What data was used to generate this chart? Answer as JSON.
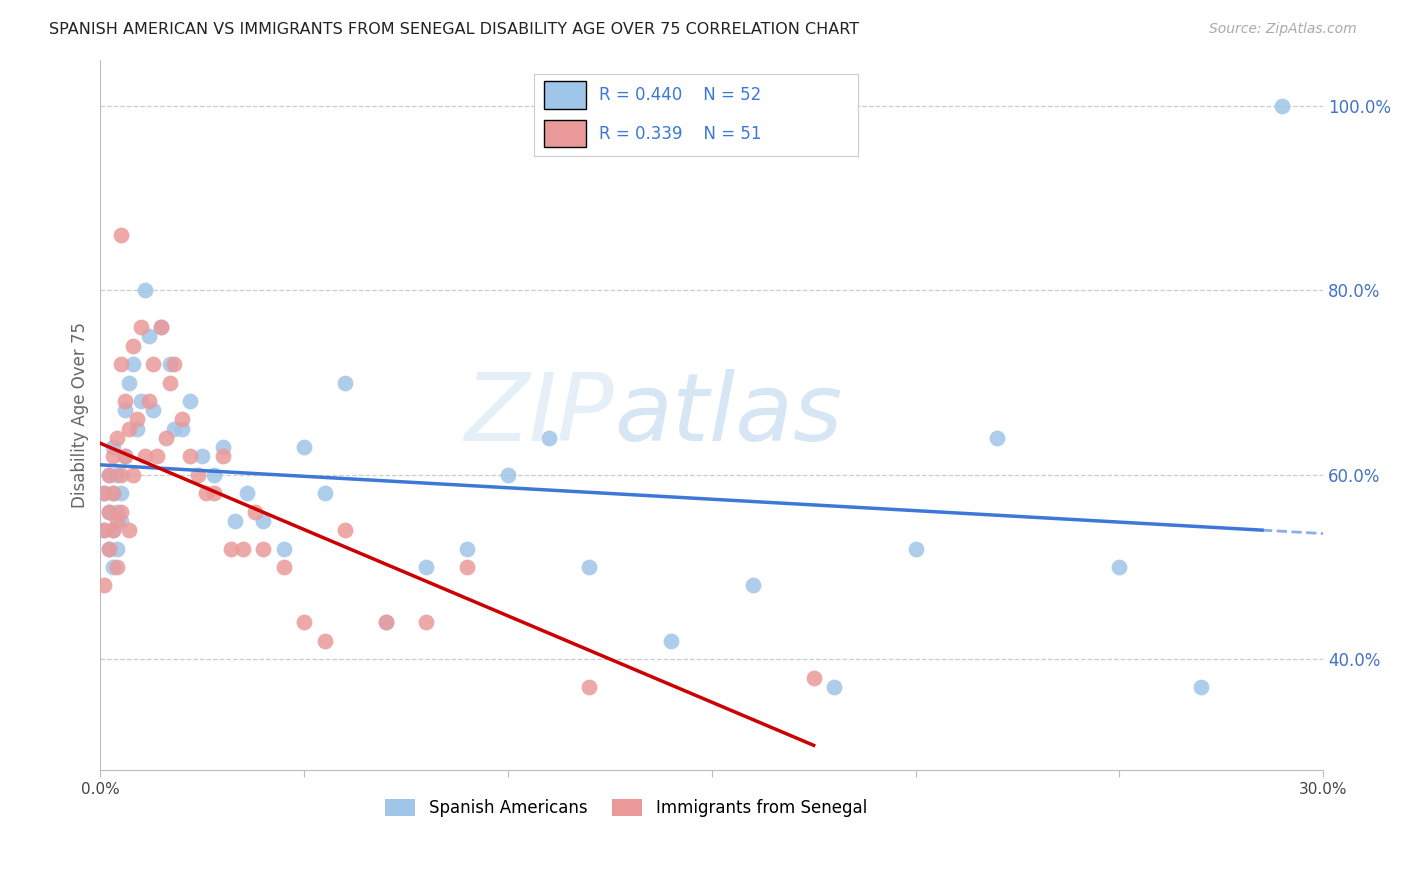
{
  "title": "SPANISH AMERICAN VS IMMIGRANTS FROM SENEGAL DISABILITY AGE OVER 75 CORRELATION CHART",
  "source": "Source: ZipAtlas.com",
  "ylabel": "Disability Age Over 75",
  "xlim": [
    0.0,
    0.3
  ],
  "ylim": [
    0.28,
    1.05
  ],
  "x_ticks": [
    0.0,
    0.05,
    0.1,
    0.15,
    0.2,
    0.25,
    0.3
  ],
  "x_tick_labels": [
    "0.0%",
    "",
    "",
    "",
    "",
    "",
    "30.0%"
  ],
  "y_ticks_right": [
    0.4,
    0.6,
    0.8,
    1.0
  ],
  "y_tick_labels_right": [
    "40.0%",
    "60.0%",
    "80.0%",
    "100.0%"
  ],
  "legend_blue_label": "Spanish Americans",
  "legend_pink_label": "Immigrants from Senegal",
  "R_blue": 0.44,
  "N_blue": 52,
  "R_pink": 0.339,
  "N_pink": 51,
  "blue_color": "#9fc5e8",
  "pink_color": "#ea9999",
  "line_blue": "#3c78d8",
  "line_pink": "#cc0000",
  "watermark_zip": "ZIP",
  "watermark_atlas": "atlas",
  "blue_scatter_x": [
    0.001,
    0.001,
    0.002,
    0.002,
    0.002,
    0.003,
    0.003,
    0.003,
    0.003,
    0.004,
    0.004,
    0.004,
    0.005,
    0.005,
    0.006,
    0.006,
    0.007,
    0.008,
    0.009,
    0.01,
    0.011,
    0.012,
    0.013,
    0.015,
    0.017,
    0.018,
    0.02,
    0.022,
    0.025,
    0.028,
    0.03,
    0.033,
    0.036,
    0.04,
    0.045,
    0.05,
    0.055,
    0.06,
    0.07,
    0.08,
    0.09,
    0.1,
    0.11,
    0.12,
    0.14,
    0.16,
    0.18,
    0.2,
    0.22,
    0.25,
    0.27,
    0.29
  ],
  "blue_scatter_y": [
    0.54,
    0.58,
    0.52,
    0.56,
    0.6,
    0.5,
    0.54,
    0.58,
    0.63,
    0.52,
    0.56,
    0.6,
    0.55,
    0.58,
    0.62,
    0.67,
    0.7,
    0.72,
    0.65,
    0.68,
    0.8,
    0.75,
    0.67,
    0.76,
    0.72,
    0.65,
    0.65,
    0.68,
    0.62,
    0.6,
    0.63,
    0.55,
    0.58,
    0.55,
    0.52,
    0.63,
    0.58,
    0.7,
    0.44,
    0.5,
    0.52,
    0.6,
    0.64,
    0.5,
    0.42,
    0.48,
    0.37,
    0.52,
    0.64,
    0.5,
    0.37,
    1.0
  ],
  "pink_scatter_x": [
    0.001,
    0.001,
    0.001,
    0.002,
    0.002,
    0.002,
    0.003,
    0.003,
    0.003,
    0.004,
    0.004,
    0.004,
    0.005,
    0.005,
    0.005,
    0.006,
    0.006,
    0.007,
    0.007,
    0.008,
    0.008,
    0.009,
    0.01,
    0.011,
    0.012,
    0.013,
    0.014,
    0.015,
    0.016,
    0.017,
    0.018,
    0.02,
    0.022,
    0.024,
    0.026,
    0.028,
    0.03,
    0.032,
    0.035,
    0.038,
    0.04,
    0.045,
    0.05,
    0.055,
    0.06,
    0.07,
    0.08,
    0.09,
    0.12,
    0.175,
    0.005
  ],
  "pink_scatter_y": [
    0.54,
    0.58,
    0.48,
    0.6,
    0.52,
    0.56,
    0.54,
    0.62,
    0.58,
    0.55,
    0.5,
    0.64,
    0.6,
    0.56,
    0.72,
    0.62,
    0.68,
    0.65,
    0.54,
    0.6,
    0.74,
    0.66,
    0.76,
    0.62,
    0.68,
    0.72,
    0.62,
    0.76,
    0.64,
    0.7,
    0.72,
    0.66,
    0.62,
    0.6,
    0.58,
    0.58,
    0.62,
    0.52,
    0.52,
    0.56,
    0.52,
    0.5,
    0.44,
    0.42,
    0.54,
    0.44,
    0.44,
    0.5,
    0.37,
    0.38,
    0.86
  ]
}
